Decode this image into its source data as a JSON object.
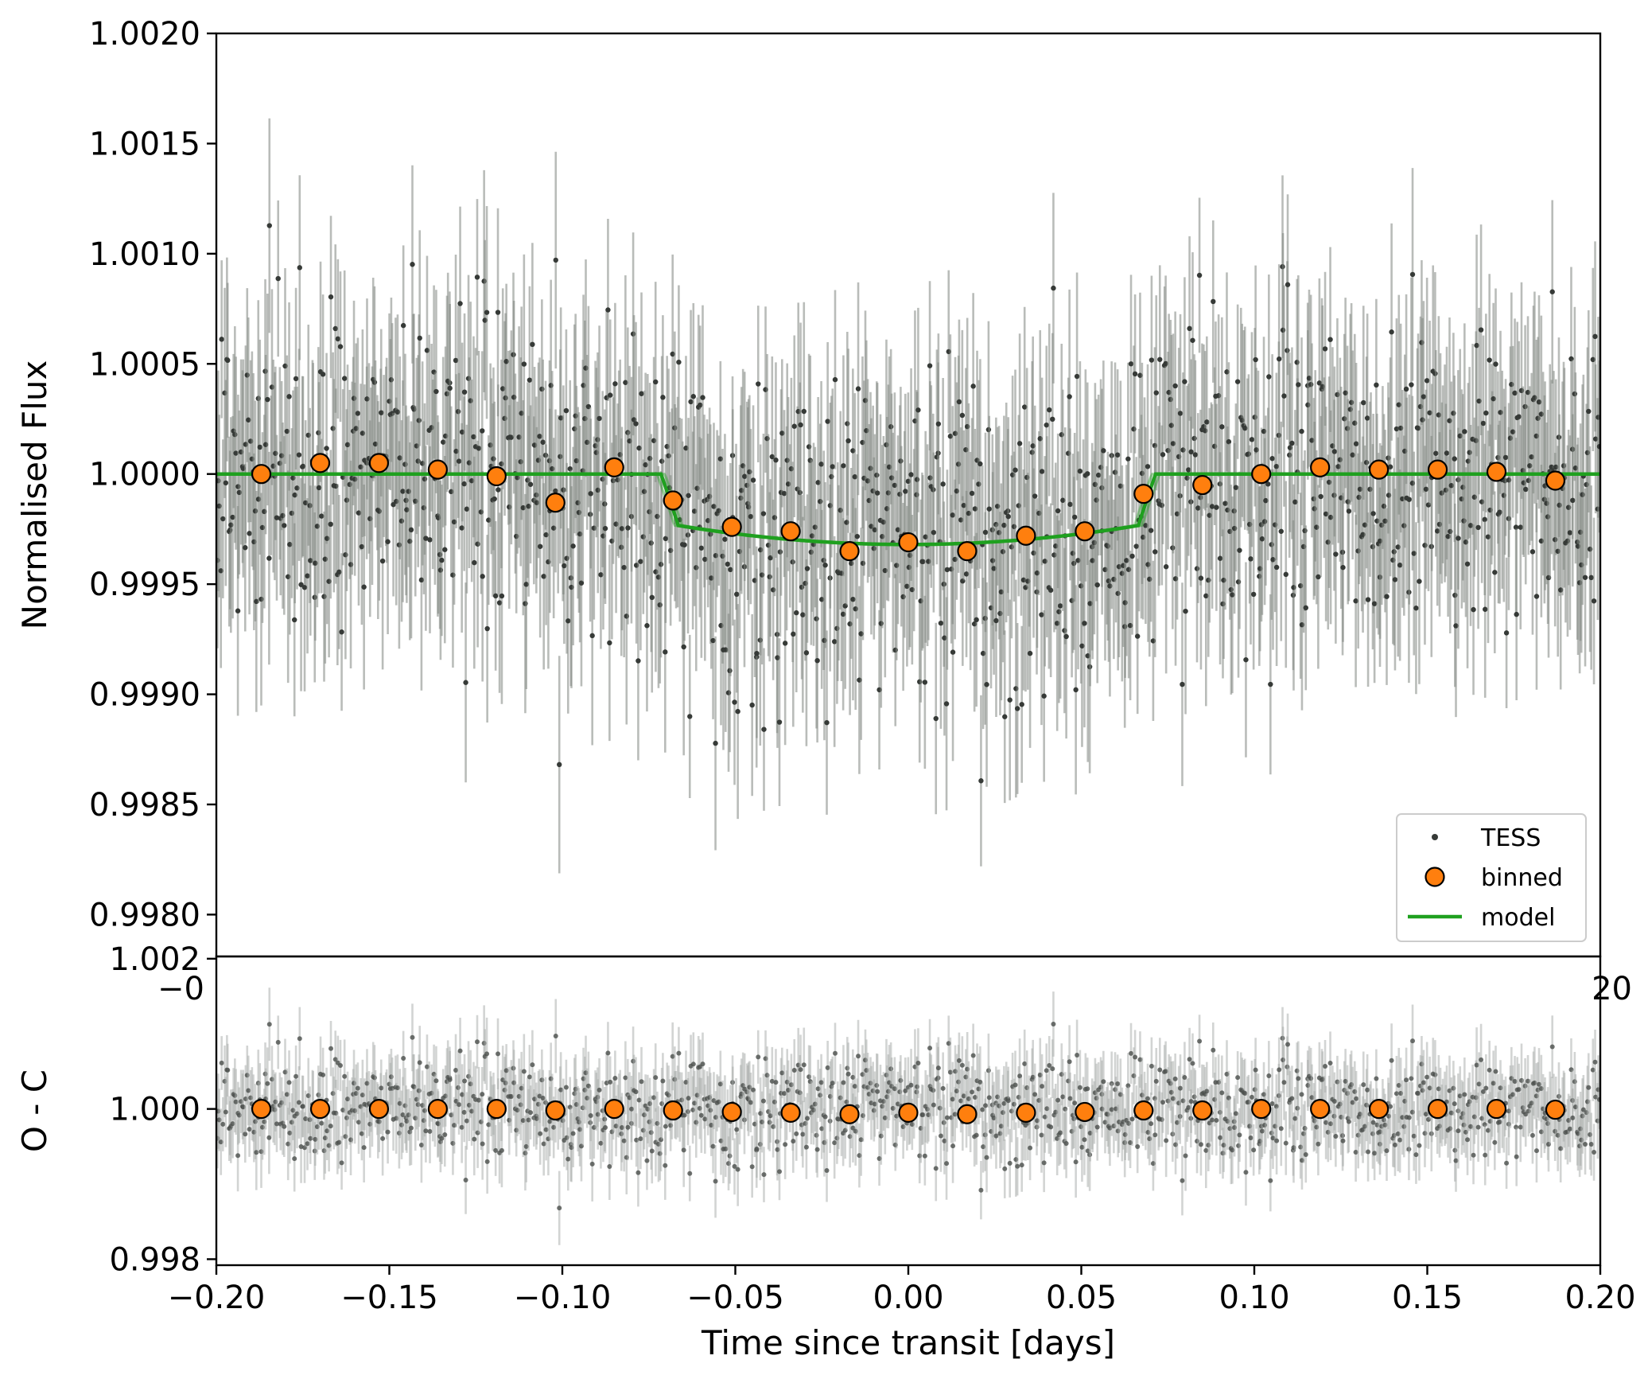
{
  "chart_data": [
    {
      "panel": "main",
      "type": "scatter",
      "title": "",
      "xlabel": "",
      "ylabel": "Normalised Flux",
      "xlim": [
        -0.2,
        0.2
      ],
      "ylim": [
        0.99781,
        1.002
      ],
      "yticks": [
        "0.9980",
        "0.9985",
        "0.9990",
        "0.9995",
        "1.0000",
        "1.0005",
        "1.0010",
        "1.0015",
        "1.0020"
      ],
      "ytick_values": [
        0.998,
        0.9985,
        0.999,
        0.9995,
        1.0,
        1.0005,
        1.001,
        1.0015,
        1.002
      ],
      "xticks_visible_partial": [
        "−0",
        "20"
      ],
      "legend": {
        "placement": "lower-right",
        "entries": [
          "TESS",
          "binned",
          "model"
        ]
      },
      "series": [
        {
          "name": "TESS",
          "kind": "points-with-errorbars",
          "color": "#363a37",
          "errorbar_color": "#7f8580",
          "typical_error": 0.00042,
          "scatter_std": 0.00036,
          "n_points": 1150,
          "note_values": "dense cloud centred on model"
        },
        {
          "name": "binned",
          "kind": "markers",
          "color": "#ff7f0e",
          "edgecolor": "#000000",
          "x": [
            -0.187,
            -0.17,
            -0.153,
            -0.136,
            -0.119,
            -0.102,
            -0.085,
            -0.068,
            -0.051,
            -0.034,
            -0.017,
            0.0,
            0.017,
            0.034,
            0.051,
            0.068,
            0.085,
            0.102,
            0.119,
            0.136,
            0.153,
            0.17,
            0.187
          ],
          "y": [
            1.0,
            1.00005,
            1.00005,
            1.00002,
            0.99999,
            0.99987,
            1.00003,
            0.99988,
            0.99976,
            0.99974,
            0.99965,
            0.99969,
            0.99965,
            0.99972,
            0.99974,
            0.99991,
            0.99995,
            1.0,
            1.00003,
            1.00002,
            1.00002,
            1.00001,
            0.99997
          ]
        },
        {
          "name": "model",
          "kind": "line",
          "color": "#1fa01f",
          "t_ingress_start": -0.0715,
          "t_ingress_end": -0.0665,
          "t_egress_start": 0.0665,
          "t_egress_end": 0.0715,
          "depth_center": 0.00032,
          "depth_edge": 0.00022
        }
      ]
    },
    {
      "panel": "residuals",
      "type": "scatter",
      "title": "",
      "xlabel": "Time since transit [days]",
      "ylabel": "O - C",
      "xlim": [
        -0.2,
        0.2
      ],
      "ylim": [
        0.99792,
        1.00203
      ],
      "yticks": [
        "0.998",
        "1.000",
        "1.002"
      ],
      "ytick_values": [
        0.998,
        1.0,
        1.002
      ],
      "xticks": [
        "−0.20",
        "−0.15",
        "−0.10",
        "−0.05",
        "0.00",
        "0.05",
        "0.10",
        "0.15",
        "0.20"
      ],
      "xtick_values": [
        -0.2,
        -0.15,
        -0.1,
        -0.05,
        0.0,
        0.05,
        0.1,
        0.15,
        0.2
      ],
      "series": [
        {
          "name": "residuals",
          "kind": "points-with-errorbars",
          "color": "#4a4d4b",
          "errorbar_color": "#a6aaa7",
          "typical_error": 0.00042,
          "scatter_std": 0.00036,
          "n_points": 1150
        },
        {
          "name": "binned",
          "kind": "markers",
          "color": "#ff7f0e",
          "edgecolor": "#000000",
          "x": [
            -0.187,
            -0.17,
            -0.153,
            -0.136,
            -0.119,
            -0.102,
            -0.085,
            -0.068,
            -0.051,
            -0.034,
            -0.017,
            0.0,
            0.017,
            0.034,
            0.051,
            0.068,
            0.085,
            0.102,
            0.119,
            0.136,
            0.153,
            0.17,
            0.187
          ],
          "y": [
            1.0,
            1.0,
            1.0,
            1.0,
            1.0,
            0.99998,
            1.0,
            0.99998,
            0.99996,
            0.99995,
            0.99993,
            0.99995,
            0.99993,
            0.99995,
            0.99996,
            0.99998,
            0.99998,
            1.0,
            1.0,
            1.0,
            1.0,
            1.0,
            0.99999
          ]
        }
      ]
    }
  ]
}
